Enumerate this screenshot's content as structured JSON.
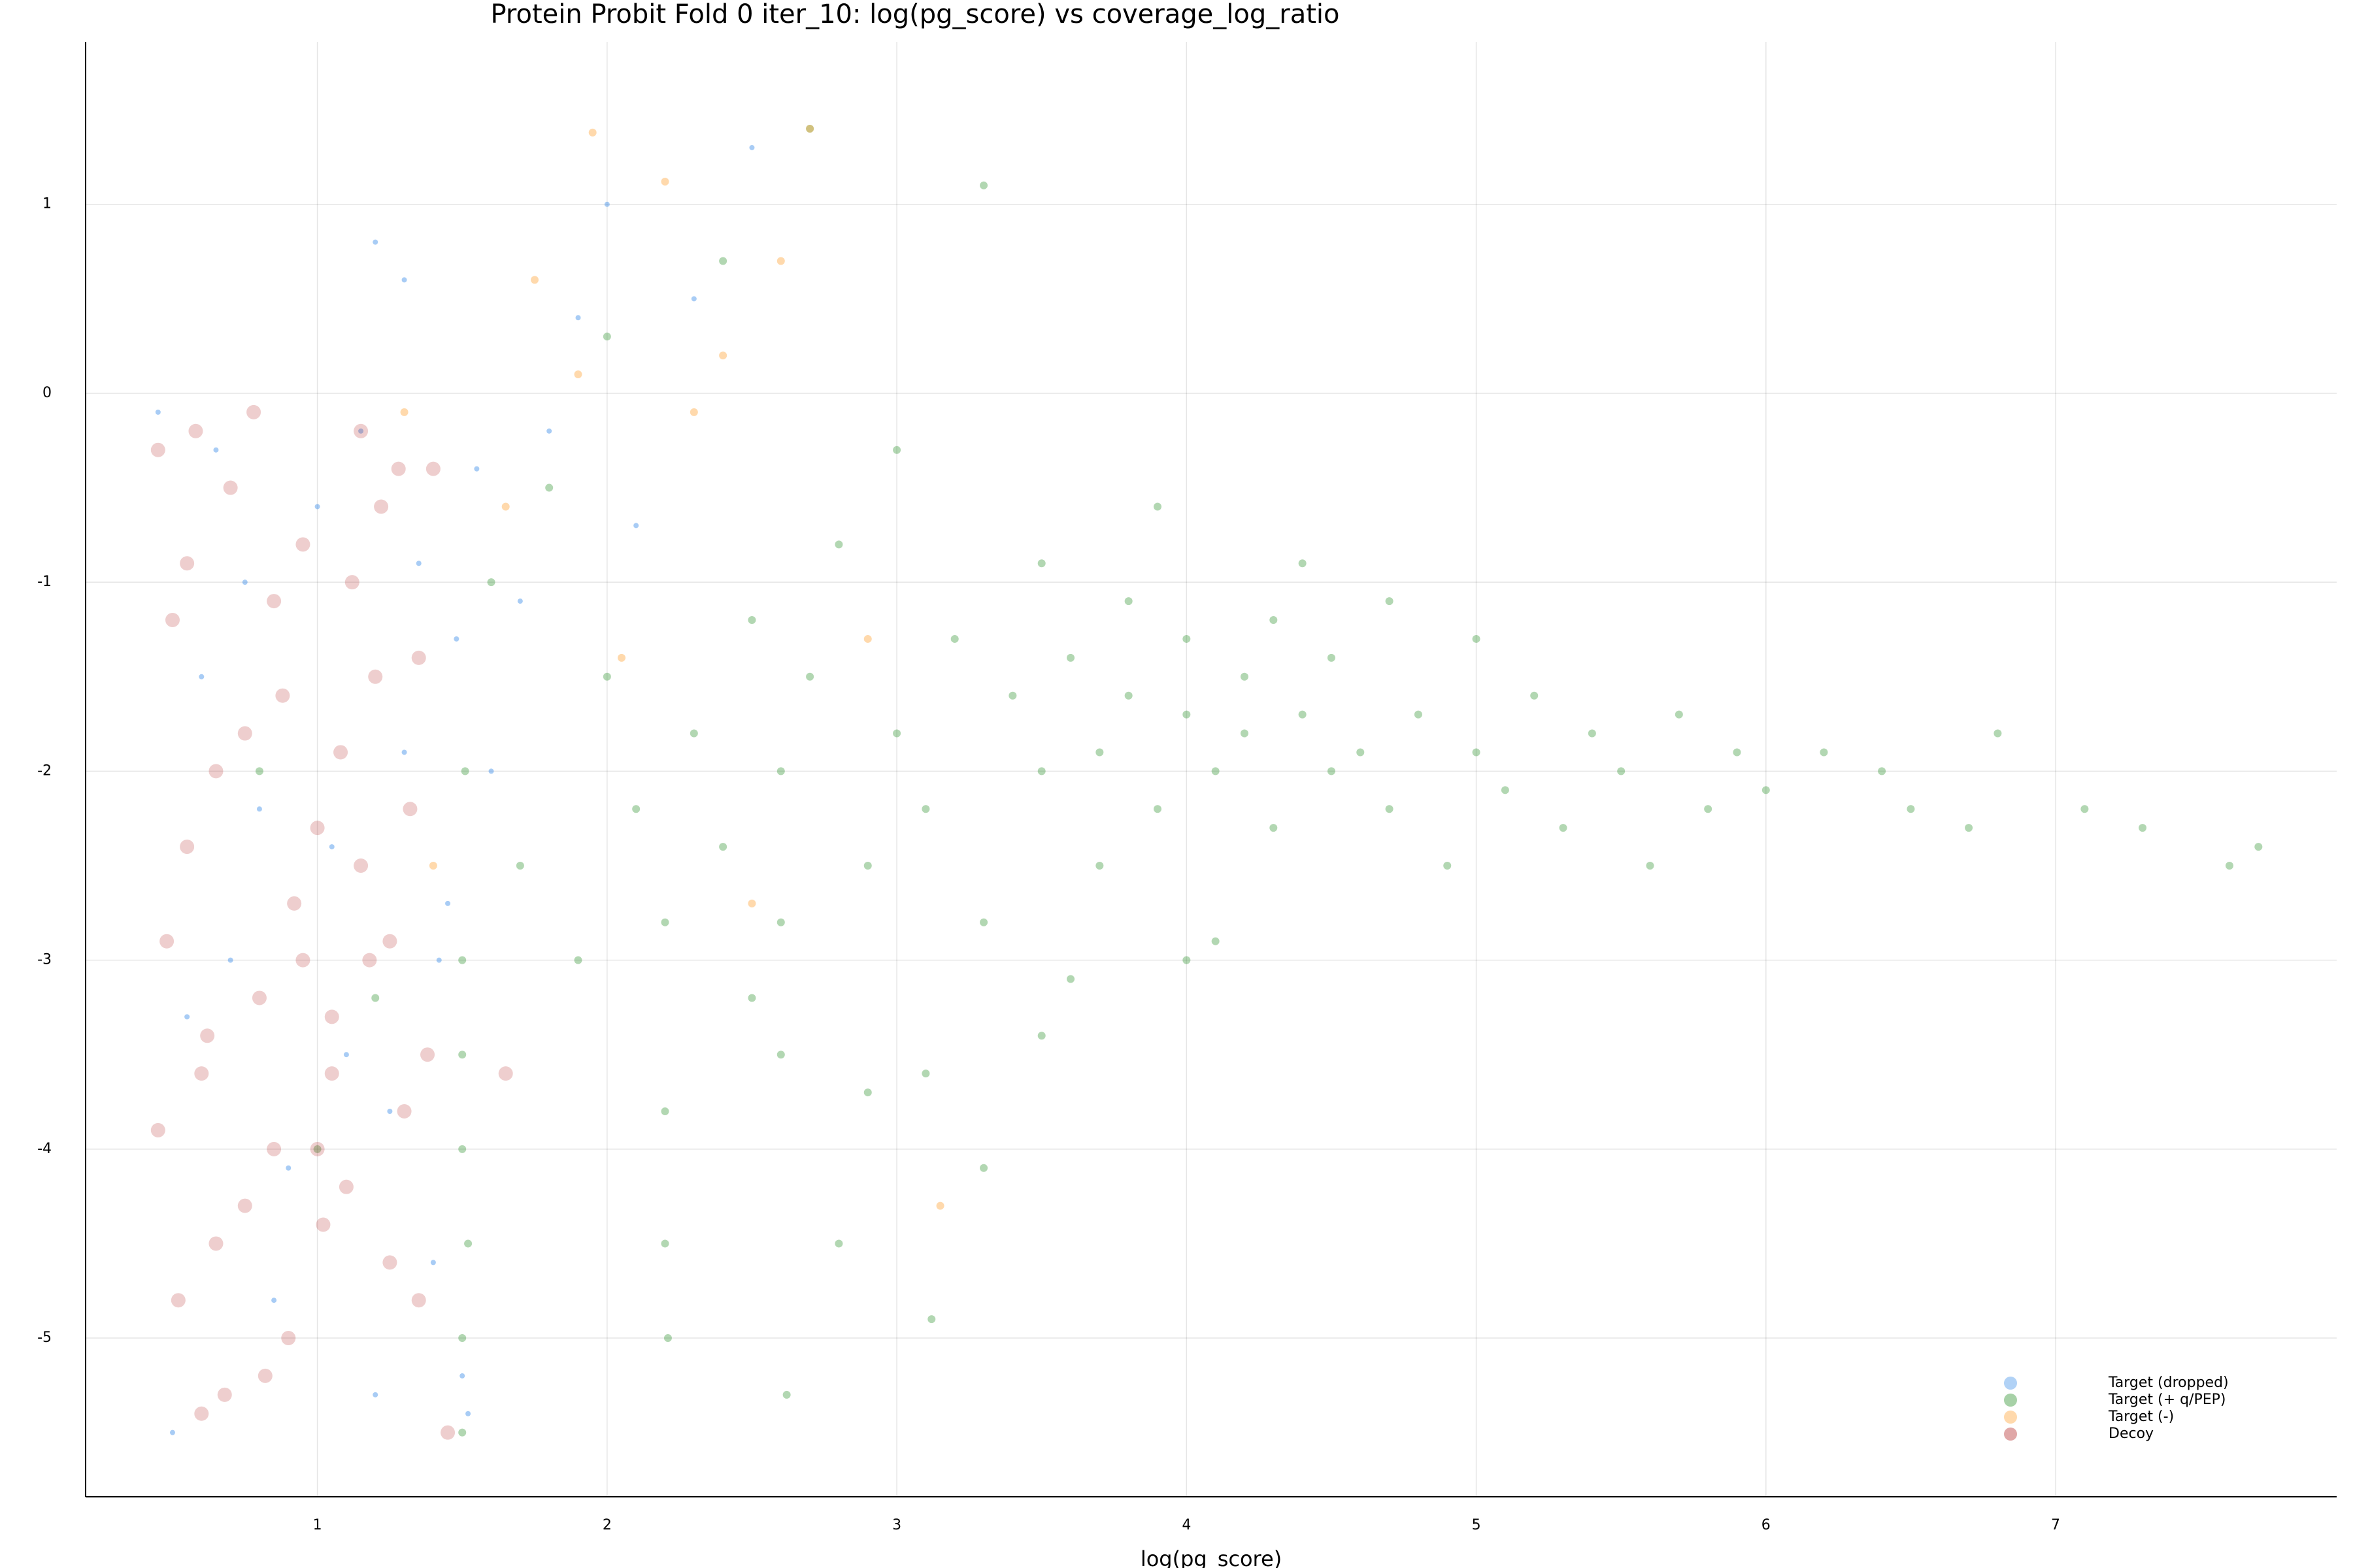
{
  "chart_data": {
    "type": "scatter",
    "title": "Protein Probit Fold 0 iter_10: log(pg_score) vs coverage_log_ratio",
    "x_label": "log(pg_score)",
    "xlim": [
      0.2,
      7.97
    ],
    "ylim": [
      -5.84,
      1.86
    ],
    "xticks": [
      1,
      2,
      3,
      4,
      5,
      6,
      7
    ],
    "yticks": [
      -5,
      -4,
      -3,
      -2,
      -1,
      0,
      1
    ],
    "grid": true,
    "legend": "lower right",
    "series": [
      {
        "name": "Target (dropped)",
        "color": "#3d8ee8",
        "x": [
          0.45,
          0.6,
          0.7,
          0.8,
          0.9,
          1.0,
          1.1,
          1.2,
          1.3,
          1.4,
          1.45,
          1.5,
          1.55,
          0.5,
          0.65,
          0.85,
          1.05,
          1.25,
          1.35,
          1.48,
          1.6,
          1.7,
          1.8,
          1.9,
          2.0,
          2.1,
          2.3,
          2.5,
          1.3,
          1.2,
          0.55,
          0.75,
          1.15,
          1.42,
          1.52
        ],
        "y": [
          -0.1,
          -1.5,
          -3.0,
          -2.2,
          -4.1,
          -0.6,
          -3.5,
          0.8,
          -1.9,
          -4.6,
          -2.7,
          -5.2,
          -0.4,
          -5.5,
          -0.3,
          -4.8,
          -2.4,
          -3.8,
          -0.9,
          -1.3,
          -2.0,
          -1.1,
          -0.2,
          0.4,
          1.0,
          -0.7,
          0.5,
          1.3,
          0.6,
          -5.3,
          -3.3,
          -1.0,
          -0.2,
          -3.0,
          -5.4
        ]
      },
      {
        "name": "Target (+ q/PEP)",
        "color": "#228b22",
        "x": [
          1.5,
          1.52,
          1.51,
          1.5,
          1.6,
          1.7,
          1.8,
          1.9,
          2.0,
          2.0,
          2.1,
          2.2,
          2.2,
          2.21,
          2.3,
          2.4,
          2.5,
          2.5,
          2.6,
          2.6,
          2.62,
          2.7,
          2.8,
          2.9,
          2.9,
          3.0,
          3.0,
          3.1,
          3.12,
          3.2,
          3.3,
          3.3,
          3.4,
          3.5,
          3.5,
          3.6,
          3.6,
          3.7,
          3.7,
          3.8,
          3.8,
          3.9,
          3.9,
          4.0,
          4.0,
          4.1,
          4.1,
          4.2,
          4.2,
          4.3,
          4.3,
          4.4,
          4.4,
          4.5,
          4.5,
          4.6,
          4.7,
          4.7,
          4.8,
          4.9,
          5.0,
          5.0,
          5.1,
          5.2,
          5.3,
          5.4,
          5.5,
          5.6,
          5.7,
          5.8,
          5.9,
          6.0,
          6.2,
          6.4,
          6.5,
          6.7,
          6.8,
          7.1,
          7.3,
          7.6,
          7.7,
          2.7,
          3.3,
          2.4,
          1.5,
          1.5,
          1.5,
          1.2,
          0.8,
          1.0,
          2.8,
          2.2,
          2.6,
          3.1,
          4.0,
          3.5
        ],
        "y": [
          -3.5,
          -4.5,
          -2.0,
          -5.5,
          -1.0,
          -2.5,
          -0.5,
          -3.0,
          -1.5,
          0.3,
          -2.2,
          -3.8,
          -4.5,
          -5.0,
          -1.8,
          -2.4,
          -1.2,
          -3.2,
          -3.5,
          -2.0,
          -5.3,
          -1.5,
          -0.8,
          -3.7,
          -2.5,
          -1.8,
          -0.3,
          -2.2,
          -4.9,
          -1.3,
          -2.8,
          -4.1,
          -1.6,
          -2.0,
          -0.9,
          -1.4,
          -3.1,
          -1.9,
          -2.5,
          -1.1,
          -1.6,
          -2.2,
          -0.6,
          -1.7,
          -1.3,
          -2.0,
          -2.9,
          -1.5,
          -1.8,
          -1.2,
          -2.3,
          -1.7,
          -0.9,
          -2.0,
          -1.4,
          -1.9,
          -2.2,
          -1.1,
          -1.7,
          -2.5,
          -1.9,
          -1.3,
          -2.1,
          -1.6,
          -2.3,
          -1.8,
          -2.0,
          -2.5,
          -1.7,
          -2.2,
          -1.9,
          -2.1,
          -1.9,
          -2.0,
          -2.2,
          -2.3,
          -1.8,
          -2.2,
          -2.3,
          -2.5,
          -2.4,
          1.4,
          1.1,
          0.7,
          -5.0,
          -3.0,
          -4.0,
          -3.2,
          -2.0,
          -4.0,
          -4.5,
          -2.8,
          -2.8,
          -3.6,
          -3.0,
          -3.4
        ]
      },
      {
        "name": "Target (-)",
        "color": "#ff9f30",
        "x": [
          1.95,
          2.2,
          1.75,
          2.6,
          2.7,
          2.4,
          1.9,
          3.15,
          2.5,
          1.65,
          2.05,
          1.4,
          1.3,
          2.9,
          2.3
        ],
        "y": [
          1.38,
          1.12,
          0.6,
          0.7,
          1.4,
          0.2,
          0.1,
          -4.3,
          -2.7,
          -0.6,
          -1.4,
          -2.5,
          -0.1,
          -1.3,
          -0.1
        ]
      },
      {
        "name": "Decoy",
        "color": "#b22222",
        "x": [
          0.45,
          0.5,
          0.55,
          0.6,
          0.65,
          0.7,
          0.75,
          0.8,
          0.85,
          0.9,
          0.95,
          1.0,
          1.05,
          1.1,
          1.15,
          1.2,
          1.25,
          1.3,
          1.35,
          1.4,
          0.45,
          0.55,
          0.65,
          0.75,
          0.85,
          0.95,
          1.05,
          1.15,
          1.25,
          1.35,
          0.48,
          0.62,
          0.78,
          0.92,
          1.08,
          1.22,
          1.38,
          0.52,
          0.68,
          0.88,
          1.02,
          1.18,
          1.32,
          1.45,
          0.58,
          0.82,
          1.12,
          1.28,
          0.6,
          1.0,
          1.65
        ],
        "y": [
          -0.3,
          -1.2,
          -2.4,
          -3.6,
          -4.5,
          -0.5,
          -1.8,
          -3.2,
          -4.0,
          -5.0,
          -0.8,
          -2.3,
          -3.3,
          -4.2,
          -0.2,
          -1.5,
          -2.9,
          -3.8,
          -4.8,
          -0.4,
          -3.9,
          -0.9,
          -2.0,
          -4.3,
          -1.1,
          -3.0,
          -3.6,
          -2.5,
          -4.6,
          -1.4,
          -2.9,
          -3.4,
          -0.1,
          -2.7,
          -1.9,
          -0.6,
          -3.5,
          -4.8,
          -5.3,
          -1.6,
          -4.4,
          -3.0,
          -2.2,
          -5.5,
          -0.2,
          -5.2,
          -1.0,
          -0.4,
          -5.4,
          -4.0,
          -3.6
        ]
      }
    ]
  }
}
